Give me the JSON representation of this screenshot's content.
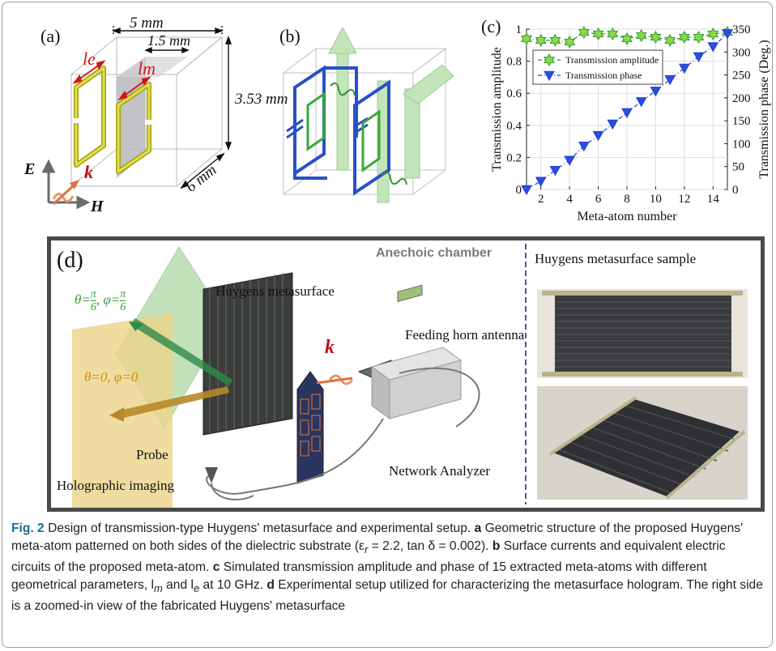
{
  "panel_a": {
    "label": "(a)",
    "dim_width": "5 mm",
    "dim_gap": "1.5 mm",
    "dim_height": "3.53 mm",
    "dim_depth": "6 mm",
    "label_le": "le",
    "label_lm": "lm",
    "axis_e": "E",
    "axis_k": "k",
    "axis_h": "H"
  },
  "panel_b": {
    "label": "(b)"
  },
  "panel_c": {
    "label": "(c)"
  },
  "chart_data": {
    "type": "line",
    "xlabel": "Meta-atom number",
    "ylabel_left": "Transmission amplitude",
    "ylabel_right": "Transmission phase (Deg.)",
    "x": [
      1,
      2,
      3,
      4,
      5,
      6,
      7,
      8,
      9,
      10,
      11,
      12,
      13,
      14,
      15
    ],
    "xticks": [
      2,
      4,
      6,
      8,
      10,
      12,
      14
    ],
    "yticks_left": [
      "0",
      "0.2",
      "0.4",
      "0.6",
      "0.8",
      "1"
    ],
    "yticks_right": [
      "0",
      "50",
      "100",
      "150",
      "200",
      "250",
      "300",
      "350"
    ],
    "xlim": [
      1,
      15
    ],
    "ylim_left": [
      0,
      1
    ],
    "ylim_right": [
      0,
      350
    ],
    "legend_position": "top-left",
    "series": [
      {
        "name": "Transmission amplitude",
        "axis": "left",
        "marker": "star",
        "color": "#2e9a2e",
        "fill": "#8ed84a",
        "values": [
          0.94,
          0.93,
          0.93,
          0.92,
          0.98,
          0.97,
          0.97,
          0.94,
          0.96,
          0.95,
          0.93,
          0.95,
          0.95,
          0.97,
          0.98
        ]
      },
      {
        "name": "Transmission phase",
        "axis": "right",
        "marker": "triangle-down",
        "color": "#1f3fcf",
        "fill": "#2a4fe0",
        "values": [
          0,
          18,
          42,
          64,
          95,
          118,
          143,
          168,
          192,
          215,
          240,
          265,
          290,
          312,
          340
        ]
      }
    ]
  },
  "panel_d": {
    "label": "(d)",
    "chamber_title": "Anechoic chamber",
    "sample_title": "Huygens metasurface sample",
    "metasurface_label": "Huygens metasurface",
    "horn_label": "Feeding horn antenna",
    "analyzer_label": "Network Analyzer",
    "probe_label": "Probe",
    "imaging_label": "Holographic imaging",
    "k_label": "k",
    "angle1_theta": "θ=",
    "angle1_phi": ", φ=",
    "angle1_num": "π",
    "angle1_den": "6",
    "angle2": "θ=0, φ=0"
  },
  "caption": {
    "fig_label": "Fig. 2",
    "title": " Design of transmission-type Huygens' metasurface and experimental setup. ",
    "a": "a",
    "a_text": " Geometric structure of the proposed Huygens' meta-atom patterned on both sides of the dielectric substrate (ε",
    "a_sub": "r",
    "a_text2": " = 2.2, tan δ = 0.002). ",
    "b": "b",
    "b_text": " Surface currents and equivalent electric circuits of the proposed meta-atom. ",
    "c": "c",
    "c_text": " Simulated transmission amplitude and phase of 15 extracted meta-atoms with different geometrical parameters, l",
    "c_sub1": "m",
    "c_mid": " and l",
    "c_sub2": "e",
    "c_text2": " at 10 GHz. ",
    "d": "d",
    "d_text": " Experimental setup utilized for characterizing the metasurface hologram. The right side is a zoomed-in view of the fabricated Huygens' metasurface"
  }
}
